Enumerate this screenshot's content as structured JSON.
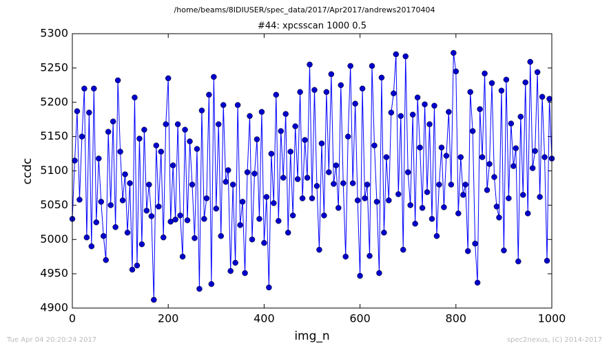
{
  "chart_data": {
    "type": "line",
    "title": "/home/beams/8IDIUSER/spec_data/2017/Apr2017/andrews20170404",
    "subtitle": "#44: xpcsscan 1000 0.5",
    "xlabel": "img_n",
    "ylabel": "ccdc",
    "timestamp": "Tue Apr 04 20:20:24 2017",
    "credit": "spec2nexus, (C) 2014-2017",
    "color": "#0000ff",
    "marker_color": "#0000cc",
    "xlim": [
      0,
      1000
    ],
    "xticks": [
      0,
      200,
      400,
      600,
      800,
      1000
    ],
    "ylim": [
      4900,
      5300
    ],
    "yticks": [
      4900,
      4950,
      5000,
      5050,
      5100,
      5150,
      5200,
      5250,
      5300
    ],
    "x": [
      0,
      5,
      10,
      15,
      20,
      25,
      30,
      35,
      40,
      45,
      50,
      55,
      60,
      65,
      70,
      75,
      80,
      85,
      90,
      95,
      100,
      105,
      110,
      115,
      120,
      125,
      130,
      135,
      140,
      145,
      150,
      155,
      160,
      165,
      170,
      175,
      180,
      185,
      190,
      195,
      200,
      205,
      210,
      215,
      220,
      225,
      230,
      235,
      240,
      245,
      250,
      255,
      260,
      265,
      270,
      275,
      280,
      285,
      290,
      295,
      300,
      305,
      310,
      315,
      320,
      325,
      330,
      335,
      340,
      345,
      350,
      355,
      360,
      365,
      370,
      375,
      380,
      385,
      390,
      395,
      400,
      405,
      410,
      415,
      420,
      425,
      430,
      435,
      440,
      445,
      450,
      455,
      460,
      465,
      470,
      475,
      480,
      485,
      490,
      495,
      500,
      505,
      510,
      515,
      520,
      525,
      530,
      535,
      540,
      545,
      550,
      555,
      560,
      565,
      570,
      575,
      580,
      585,
      590,
      595,
      600,
      605,
      610,
      615,
      620,
      625,
      630,
      635,
      640,
      645,
      650,
      655,
      660,
      665,
      670,
      675,
      680,
      685,
      690,
      695,
      700,
      705,
      710,
      715,
      720,
      725,
      730,
      735,
      740,
      745,
      750,
      755,
      760,
      765,
      770,
      775,
      780,
      785,
      790,
      795,
      800,
      805,
      810,
      815,
      820,
      825,
      830,
      835,
      840,
      845,
      850,
      855,
      860,
      865,
      870,
      875,
      880,
      885,
      890,
      895,
      900,
      905,
      910,
      915,
      920,
      925,
      930,
      935,
      940,
      945,
      950,
      955,
      960,
      965,
      970,
      975,
      980,
      985,
      990,
      995,
      1000
    ],
    "values": [
      5030,
      5115,
      5187,
      5058,
      5150,
      5220,
      5003,
      5185,
      4990,
      5220,
      5025,
      5118,
      5055,
      5005,
      4970,
      5157,
      5050,
      5172,
      5018,
      5232,
      5128,
      5057,
      5095,
      5010,
      5082,
      4956,
      5207,
      4962,
      5147,
      4993,
      5160,
      5042,
      5080,
      5034,
      4912,
      5137,
      5048,
      5128,
      5003,
      5168,
      5235,
      5026,
      5108,
      5029,
      5168,
      5035,
      4975,
      5160,
      5028,
      5143,
      5080,
      5002,
      5132,
      4928,
      5188,
      5030,
      5060,
      5211,
      4935,
      5237,
      5045,
      5168,
      5005,
      5196,
      5084,
      5101,
      4954,
      5080,
      4966,
      5196,
      5021,
      5055,
      4951,
      5098,
      5180,
      5000,
      5096,
      5146,
      5030,
      5186,
      4995,
      5062,
      4930,
      5125,
      5053,
      5211,
      5027,
      5158,
      5090,
      5183,
      5010,
      5128,
      5035,
      5165,
      5088,
      5215,
      5060,
      5145,
      5090,
      5255,
      5060,
      5218,
      5078,
      4985,
      5140,
      5035,
      5215,
      5098,
      5241,
      5081,
      5108,
      5046,
      5225,
      5082,
      4975,
      5150,
      5253,
      5082,
      5198,
      5057,
      4947,
      5220,
      5060,
      5080,
      4976,
      5253,
      5137,
      5055,
      4951,
      5236,
      5010,
      5120,
      5057,
      5185,
      5213,
      5270,
      5066,
      5180,
      4985,
      5267,
      5098,
      5050,
      5182,
      5023,
      5207,
      5134,
      5046,
      5197,
      5069,
      5168,
      5030,
      5195,
      5005,
      5080,
      5134,
      5047,
      5122,
      5186,
      5080,
      5272,
      5245,
      5038,
      5120,
      5065,
      5080,
      4983,
      5215,
      5158,
      4994,
      4937,
      5190,
      5120,
      5242,
      5072,
      5110,
      5228,
      5091,
      5048,
      5032,
      5217,
      4984,
      5233,
      5060,
      5169,
      5107,
      5133,
      4968,
      5179,
      5065,
      5229,
      5038,
      5259,
      5104,
      5129,
      5244,
      5062,
      5208,
      5120,
      4969,
      5205,
      5118
    ]
  }
}
